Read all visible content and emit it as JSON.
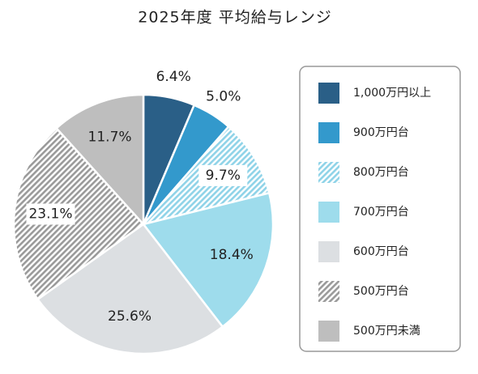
{
  "chart_data": {
    "type": "pie",
    "title": "2025年度 平均給与レンジ",
    "categories": [
      "1,000万円以上",
      "900万円台",
      "800万円台",
      "700万円台",
      "600万円台",
      "500万円台",
      "500万円未満"
    ],
    "values": [
      6.4,
      5.0,
      9.7,
      18.4,
      25.6,
      23.1,
      11.7
    ],
    "value_labels": [
      "6.4%",
      "5.0%",
      "9.7%",
      "18.4%",
      "25.6%",
      "23.1%",
      "11.7%"
    ],
    "colors": [
      "#2a5f87",
      "#3399cc",
      "#8fd3e8",
      "#9edcec",
      "#dcdfe2",
      "#9a9a9a",
      "#bebebe"
    ],
    "hatched": [
      false,
      false,
      true,
      false,
      false,
      true,
      false
    ]
  }
}
